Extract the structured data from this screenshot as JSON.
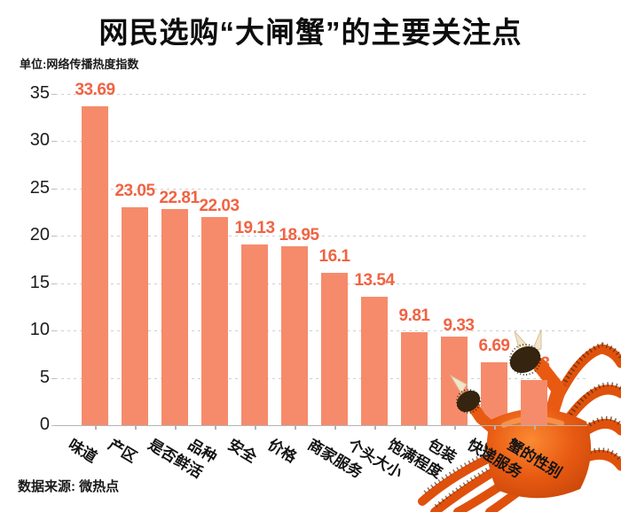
{
  "title": "网民选购“大闸蟹”的主要关注点",
  "unit_label": "单位:网络传播热度指数",
  "source": "数据来源: 微热点",
  "colors": {
    "bar": "#f68b6b",
    "value_label": "#f06342",
    "axis_text": "#1c1c1c",
    "gridline": "#cfcfcf",
    "title_text": "#0d0d0d",
    "crab_orange": "#e0520c",
    "crab_dark_mitten": "#35240f",
    "crab_cream_tip": "#f2e5c9"
  },
  "decoration": {
    "crab_image": "hairy-crab-photo-bottom-right"
  },
  "chart_data": {
    "type": "bar",
    "title": "网民选购“大闸蟹”的主要关注点",
    "ylabel": "网络传播热度指数",
    "categories": [
      "味道",
      "产区",
      "是否鲜活",
      "品种",
      "安全",
      "价格",
      "商家服务",
      "个头大小",
      "饱满程度",
      "包装",
      "快递服务",
      "蟹的性别"
    ],
    "values": [
      33.69,
      23.05,
      22.81,
      22.03,
      19.13,
      18.95,
      16.1,
      13.54,
      9.81,
      9.33,
      6.69,
      4.73
    ],
    "value_labels": [
      "33.69",
      "23.05",
      "22.81",
      "22.03",
      "19.13",
      "18.95",
      "16.1",
      "13.54",
      "9.81",
      "9.33",
      "6.69",
      "4.73"
    ],
    "ylim": [
      0,
      35
    ],
    "yticks": [
      0,
      5,
      10,
      15,
      20,
      25,
      30,
      35
    ],
    "grid": "dashed-horizontal",
    "legend": "none",
    "bar_color": "#f68b6b"
  }
}
